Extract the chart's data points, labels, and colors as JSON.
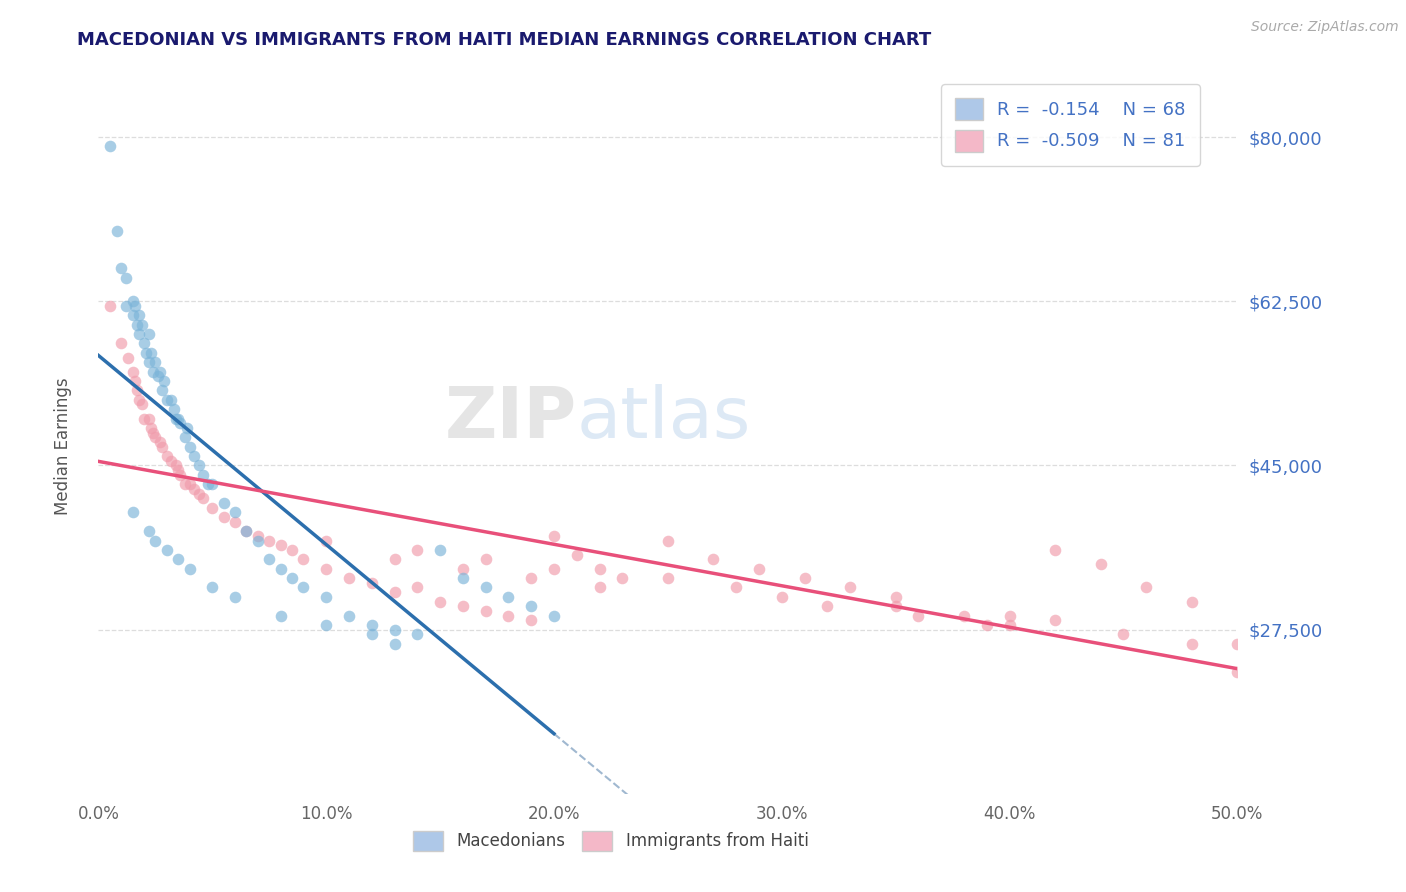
{
  "title": "MACEDONIAN VS IMMIGRANTS FROM HAITI MEDIAN EARNINGS CORRELATION CHART",
  "source": "Source: ZipAtlas.com",
  "ylabel": "Median Earnings",
  "xlim": [
    0.0,
    0.5
  ],
  "ylim": [
    10000,
    87000
  ],
  "yticks": [
    27500,
    45000,
    62500,
    80000
  ],
  "ytick_labels": [
    "$27,500",
    "$45,000",
    "$62,500",
    "$80,000"
  ],
  "xticks": [
    0.0,
    0.1,
    0.2,
    0.3,
    0.4,
    0.5
  ],
  "xtick_labels": [
    "0.0%",
    "10.0%",
    "20.0%",
    "30.0%",
    "40.0%",
    "50.0%"
  ],
  "blue_color": "#7ab3d8",
  "pink_color": "#f09aaa",
  "blue_line_color": "#2c6fad",
  "pink_line_color": "#e8507a",
  "dashed_color": "#a0b8d0",
  "background_color": "#ffffff",
  "title_color": "#1a1a6e",
  "ytick_color": "#4472c4",
  "legend_text_color": "#4472c4",
  "blue_R": -0.154,
  "blue_N": 68,
  "pink_R": -0.509,
  "pink_N": 81,
  "legend_label_blue": "Macedonians",
  "legend_label_pink": "Immigrants from Haiti",
  "blue_scatter_x": [
    0.005,
    0.008,
    0.01,
    0.012,
    0.012,
    0.015,
    0.015,
    0.016,
    0.017,
    0.018,
    0.018,
    0.019,
    0.02,
    0.021,
    0.022,
    0.022,
    0.023,
    0.024,
    0.025,
    0.026,
    0.027,
    0.028,
    0.029,
    0.03,
    0.032,
    0.033,
    0.034,
    0.035,
    0.036,
    0.038,
    0.039,
    0.04,
    0.042,
    0.044,
    0.046,
    0.048,
    0.05,
    0.055,
    0.06,
    0.065,
    0.07,
    0.075,
    0.08,
    0.085,
    0.09,
    0.1,
    0.11,
    0.12,
    0.13,
    0.14,
    0.15,
    0.16,
    0.17,
    0.18,
    0.19,
    0.2,
    0.022,
    0.025,
    0.03,
    0.035,
    0.04,
    0.05,
    0.06,
    0.08,
    0.1,
    0.12,
    0.015,
    0.13
  ],
  "blue_scatter_y": [
    79000,
    70000,
    66000,
    65000,
    62000,
    62500,
    61000,
    62000,
    60000,
    61000,
    59000,
    60000,
    58000,
    57000,
    59000,
    56000,
    57000,
    55000,
    56000,
    54500,
    55000,
    53000,
    54000,
    52000,
    52000,
    51000,
    50000,
    50000,
    49500,
    48000,
    49000,
    47000,
    46000,
    45000,
    44000,
    43000,
    43000,
    41000,
    40000,
    38000,
    37000,
    35000,
    34000,
    33000,
    32000,
    31000,
    29000,
    28000,
    27500,
    27000,
    36000,
    33000,
    32000,
    31000,
    30000,
    29000,
    38000,
    37000,
    36000,
    35000,
    34000,
    32000,
    31000,
    29000,
    28000,
    27000,
    40000,
    26000
  ],
  "pink_scatter_x": [
    0.005,
    0.01,
    0.013,
    0.015,
    0.016,
    0.017,
    0.018,
    0.019,
    0.02,
    0.022,
    0.023,
    0.024,
    0.025,
    0.027,
    0.028,
    0.03,
    0.032,
    0.034,
    0.035,
    0.036,
    0.038,
    0.04,
    0.042,
    0.044,
    0.046,
    0.05,
    0.055,
    0.06,
    0.065,
    0.07,
    0.075,
    0.08,
    0.085,
    0.09,
    0.1,
    0.11,
    0.12,
    0.13,
    0.14,
    0.15,
    0.16,
    0.17,
    0.18,
    0.19,
    0.2,
    0.21,
    0.22,
    0.23,
    0.25,
    0.27,
    0.29,
    0.31,
    0.33,
    0.35,
    0.38,
    0.4,
    0.42,
    0.44,
    0.46,
    0.48,
    0.5,
    0.14,
    0.17,
    0.2,
    0.25,
    0.28,
    0.32,
    0.36,
    0.39,
    0.42,
    0.45,
    0.48,
    0.1,
    0.13,
    0.16,
    0.19,
    0.22,
    0.5,
    0.3,
    0.35,
    0.4
  ],
  "pink_scatter_y": [
    62000,
    58000,
    56500,
    55000,
    54000,
    53000,
    52000,
    51500,
    50000,
    50000,
    49000,
    48500,
    48000,
    47500,
    47000,
    46000,
    45500,
    45000,
    44500,
    44000,
    43000,
    43000,
    42500,
    42000,
    41500,
    40500,
    39500,
    39000,
    38000,
    37500,
    37000,
    36500,
    36000,
    35000,
    34000,
    33000,
    32500,
    31500,
    32000,
    30500,
    30000,
    29500,
    29000,
    28500,
    37500,
    35500,
    34000,
    33000,
    37000,
    35000,
    34000,
    33000,
    32000,
    31000,
    29000,
    28000,
    36000,
    34500,
    32000,
    30500,
    26000,
    36000,
    35000,
    34000,
    33000,
    32000,
    30000,
    29000,
    28000,
    28500,
    27000,
    26000,
    37000,
    35000,
    34000,
    33000,
    32000,
    23000,
    31000,
    30000,
    29000
  ]
}
